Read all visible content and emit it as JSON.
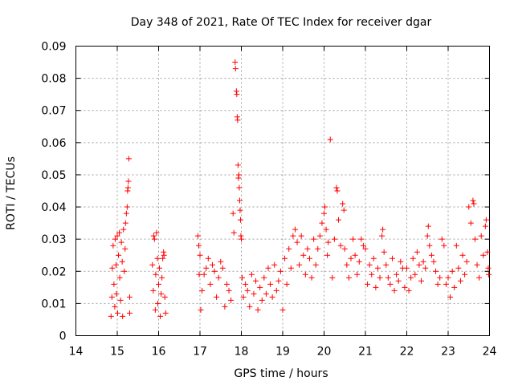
{
  "chart_data": {
    "type": "scatter",
    "title": "Day 348 of 2021, Rate Of TEC Index for receiver dgar",
    "xlabel": "GPS time / hours",
    "ylabel": "ROTI / TECUs",
    "xlim": [
      14,
      24
    ],
    "ylim": [
      0,
      0.09
    ],
    "xticks": [
      "14",
      "15",
      "16",
      "17",
      "18",
      "19",
      "20",
      "21",
      "22",
      "23",
      "24"
    ],
    "yticks": [
      "0",
      "0.01",
      "0.02",
      "0.03",
      "0.04",
      "0.05",
      "0.06",
      "0.07",
      "0.08",
      "0.09"
    ],
    "grid": true,
    "marker": "+",
    "color": "#ff0000",
    "series": [
      {
        "name": "ROTI",
        "points": [
          [
            14.85,
            0.006
          ],
          [
            14.87,
            0.012
          ],
          [
            14.88,
            0.021
          ],
          [
            14.9,
            0.028
          ],
          [
            14.92,
            0.016
          ],
          [
            14.94,
            0.009
          ],
          [
            14.95,
            0.03
          ],
          [
            14.97,
            0.022
          ],
          [
            14.98,
            0.013
          ],
          [
            15.0,
            0.031
          ],
          [
            15.01,
            0.007
          ],
          [
            15.03,
            0.025
          ],
          [
            15.05,
            0.032
          ],
          [
            15.06,
            0.018
          ],
          [
            15.08,
            0.011
          ],
          [
            15.1,
            0.029
          ],
          [
            15.12,
            0.023
          ],
          [
            15.13,
            0.006
          ],
          [
            15.15,
            0.033
          ],
          [
            15.17,
            0.02
          ],
          [
            15.19,
            0.027
          ],
          [
            15.2,
            0.035
          ],
          [
            15.22,
            0.038
          ],
          [
            15.24,
            0.04
          ],
          [
            15.25,
            0.045
          ],
          [
            15.26,
            0.046
          ],
          [
            15.27,
            0.048
          ],
          [
            15.28,
            0.055
          ],
          [
            15.3,
            0.012
          ],
          [
            15.3,
            0.007
          ],
          [
            15.85,
            0.022
          ],
          [
            15.87,
            0.014
          ],
          [
            15.88,
            0.031
          ],
          [
            15.9,
            0.03
          ],
          [
            15.92,
            0.008
          ],
          [
            15.93,
            0.019
          ],
          [
            15.95,
            0.032
          ],
          [
            15.97,
            0.024
          ],
          [
            15.98,
            0.01
          ],
          [
            16.0,
            0.016
          ],
          [
            16.02,
            0.021
          ],
          [
            16.04,
            0.006
          ],
          [
            16.06,
            0.013
          ],
          [
            16.08,
            0.018
          ],
          [
            16.1,
            0.024
          ],
          [
            16.12,
            0.026
          ],
          [
            16.13,
            0.025
          ],
          [
            16.15,
            0.012
          ],
          [
            16.17,
            0.007
          ],
          [
            16.95,
            0.031
          ],
          [
            16.97,
            0.028
          ],
          [
            16.98,
            0.019
          ],
          [
            17.0,
            0.025
          ],
          [
            17.02,
            0.008
          ],
          [
            17.05,
            0.014
          ],
          [
            17.1,
            0.019
          ],
          [
            17.15,
            0.021
          ],
          [
            17.2,
            0.024
          ],
          [
            17.25,
            0.016
          ],
          [
            17.3,
            0.022
          ],
          [
            17.35,
            0.02
          ],
          [
            17.4,
            0.012
          ],
          [
            17.45,
            0.018
          ],
          [
            17.5,
            0.023
          ],
          [
            17.55,
            0.021
          ],
          [
            17.6,
            0.009
          ],
          [
            17.65,
            0.016
          ],
          [
            17.7,
            0.014
          ],
          [
            17.75,
            0.011
          ],
          [
            17.8,
            0.038
          ],
          [
            17.82,
            0.032
          ],
          [
            17.85,
            0.085
          ],
          [
            17.86,
            0.083
          ],
          [
            17.88,
            0.076
          ],
          [
            17.89,
            0.075
          ],
          [
            17.9,
            0.068
          ],
          [
            17.91,
            0.067
          ],
          [
            17.92,
            0.053
          ],
          [
            17.93,
            0.049
          ],
          [
            17.94,
            0.05
          ],
          [
            17.95,
            0.046
          ],
          [
            17.96,
            0.042
          ],
          [
            17.97,
            0.039
          ],
          [
            17.98,
            0.036
          ],
          [
            17.99,
            0.031
          ],
          [
            18.0,
            0.03
          ],
          [
            18.02,
            0.018
          ],
          [
            18.05,
            0.012
          ],
          [
            18.1,
            0.016
          ],
          [
            18.15,
            0.014
          ],
          [
            18.2,
            0.009
          ],
          [
            18.25,
            0.019
          ],
          [
            18.3,
            0.013
          ],
          [
            18.35,
            0.017
          ],
          [
            18.4,
            0.008
          ],
          [
            18.45,
            0.015
          ],
          [
            18.5,
            0.011
          ],
          [
            18.55,
            0.018
          ],
          [
            18.6,
            0.013
          ],
          [
            18.65,
            0.021
          ],
          [
            18.7,
            0.016
          ],
          [
            18.75,
            0.012
          ],
          [
            18.8,
            0.022
          ],
          [
            18.85,
            0.014
          ],
          [
            18.9,
            0.017
          ],
          [
            18.95,
            0.02
          ],
          [
            19.0,
            0.008
          ],
          [
            19.05,
            0.024
          ],
          [
            19.1,
            0.016
          ],
          [
            19.15,
            0.027
          ],
          [
            19.2,
            0.021
          ],
          [
            19.25,
            0.031
          ],
          [
            19.3,
            0.033
          ],
          [
            19.35,
            0.029
          ],
          [
            19.4,
            0.022
          ],
          [
            19.45,
            0.031
          ],
          [
            19.5,
            0.025
          ],
          [
            19.55,
            0.019
          ],
          [
            19.6,
            0.027
          ],
          [
            19.65,
            0.024
          ],
          [
            19.7,
            0.018
          ],
          [
            19.75,
            0.03
          ],
          [
            19.8,
            0.022
          ],
          [
            19.85,
            0.027
          ],
          [
            19.9,
            0.031
          ],
          [
            19.95,
            0.035
          ],
          [
            20.0,
            0.038
          ],
          [
            20.02,
            0.04
          ],
          [
            20.05,
            0.033
          ],
          [
            20.08,
            0.025
          ],
          [
            20.1,
            0.029
          ],
          [
            20.15,
            0.061
          ],
          [
            20.2,
            0.018
          ],
          [
            20.25,
            0.03
          ],
          [
            20.3,
            0.046
          ],
          [
            20.32,
            0.045
          ],
          [
            20.35,
            0.036
          ],
          [
            20.4,
            0.028
          ],
          [
            20.45,
            0.041
          ],
          [
            20.48,
            0.039
          ],
          [
            20.5,
            0.027
          ],
          [
            20.55,
            0.022
          ],
          [
            20.6,
            0.018
          ],
          [
            20.65,
            0.024
          ],
          [
            20.7,
            0.03
          ],
          [
            20.75,
            0.025
          ],
          [
            20.8,
            0.019
          ],
          [
            20.85,
            0.023
          ],
          [
            20.9,
            0.03
          ],
          [
            20.95,
            0.028
          ],
          [
            21.0,
            0.027
          ],
          [
            21.05,
            0.016
          ],
          [
            21.1,
            0.022
          ],
          [
            21.15,
            0.019
          ],
          [
            21.2,
            0.024
          ],
          [
            21.25,
            0.015
          ],
          [
            21.3,
            0.021
          ],
          [
            21.35,
            0.018
          ],
          [
            21.4,
            0.031
          ],
          [
            21.42,
            0.033
          ],
          [
            21.45,
            0.026
          ],
          [
            21.5,
            0.022
          ],
          [
            21.55,
            0.018
          ],
          [
            21.6,
            0.016
          ],
          [
            21.65,
            0.024
          ],
          [
            21.7,
            0.014
          ],
          [
            21.75,
            0.019
          ],
          [
            21.8,
            0.017
          ],
          [
            21.85,
            0.023
          ],
          [
            21.9,
            0.021
          ],
          [
            21.95,
            0.015
          ],
          [
            22.0,
            0.021
          ],
          [
            22.05,
            0.014
          ],
          [
            22.1,
            0.018
          ],
          [
            22.15,
            0.024
          ],
          [
            22.2,
            0.019
          ],
          [
            22.25,
            0.026
          ],
          [
            22.3,
            0.022
          ],
          [
            22.35,
            0.017
          ],
          [
            22.4,
            0.023
          ],
          [
            22.45,
            0.021
          ],
          [
            22.5,
            0.031
          ],
          [
            22.52,
            0.034
          ],
          [
            22.55,
            0.028
          ],
          [
            22.6,
            0.025
          ],
          [
            22.65,
            0.023
          ],
          [
            22.7,
            0.02
          ],
          [
            22.75,
            0.016
          ],
          [
            22.8,
            0.018
          ],
          [
            22.85,
            0.03
          ],
          [
            22.9,
            0.028
          ],
          [
            22.95,
            0.016
          ],
          [
            23.0,
            0.018
          ],
          [
            23.05,
            0.012
          ],
          [
            23.1,
            0.02
          ],
          [
            23.15,
            0.015
          ],
          [
            23.2,
            0.028
          ],
          [
            23.25,
            0.021
          ],
          [
            23.3,
            0.017
          ],
          [
            23.35,
            0.025
          ],
          [
            23.4,
            0.019
          ],
          [
            23.45,
            0.023
          ],
          [
            23.5,
            0.04
          ],
          [
            23.55,
            0.035
          ],
          [
            23.6,
            0.042
          ],
          [
            23.62,
            0.041
          ],
          [
            23.65,
            0.03
          ],
          [
            23.7,
            0.022
          ],
          [
            23.75,
            0.018
          ],
          [
            23.8,
            0.031
          ],
          [
            23.85,
            0.025
          ],
          [
            23.9,
            0.034
          ],
          [
            23.92,
            0.036
          ],
          [
            23.95,
            0.026
          ],
          [
            23.97,
            0.021
          ],
          [
            23.98,
            0.019
          ]
        ]
      }
    ]
  }
}
